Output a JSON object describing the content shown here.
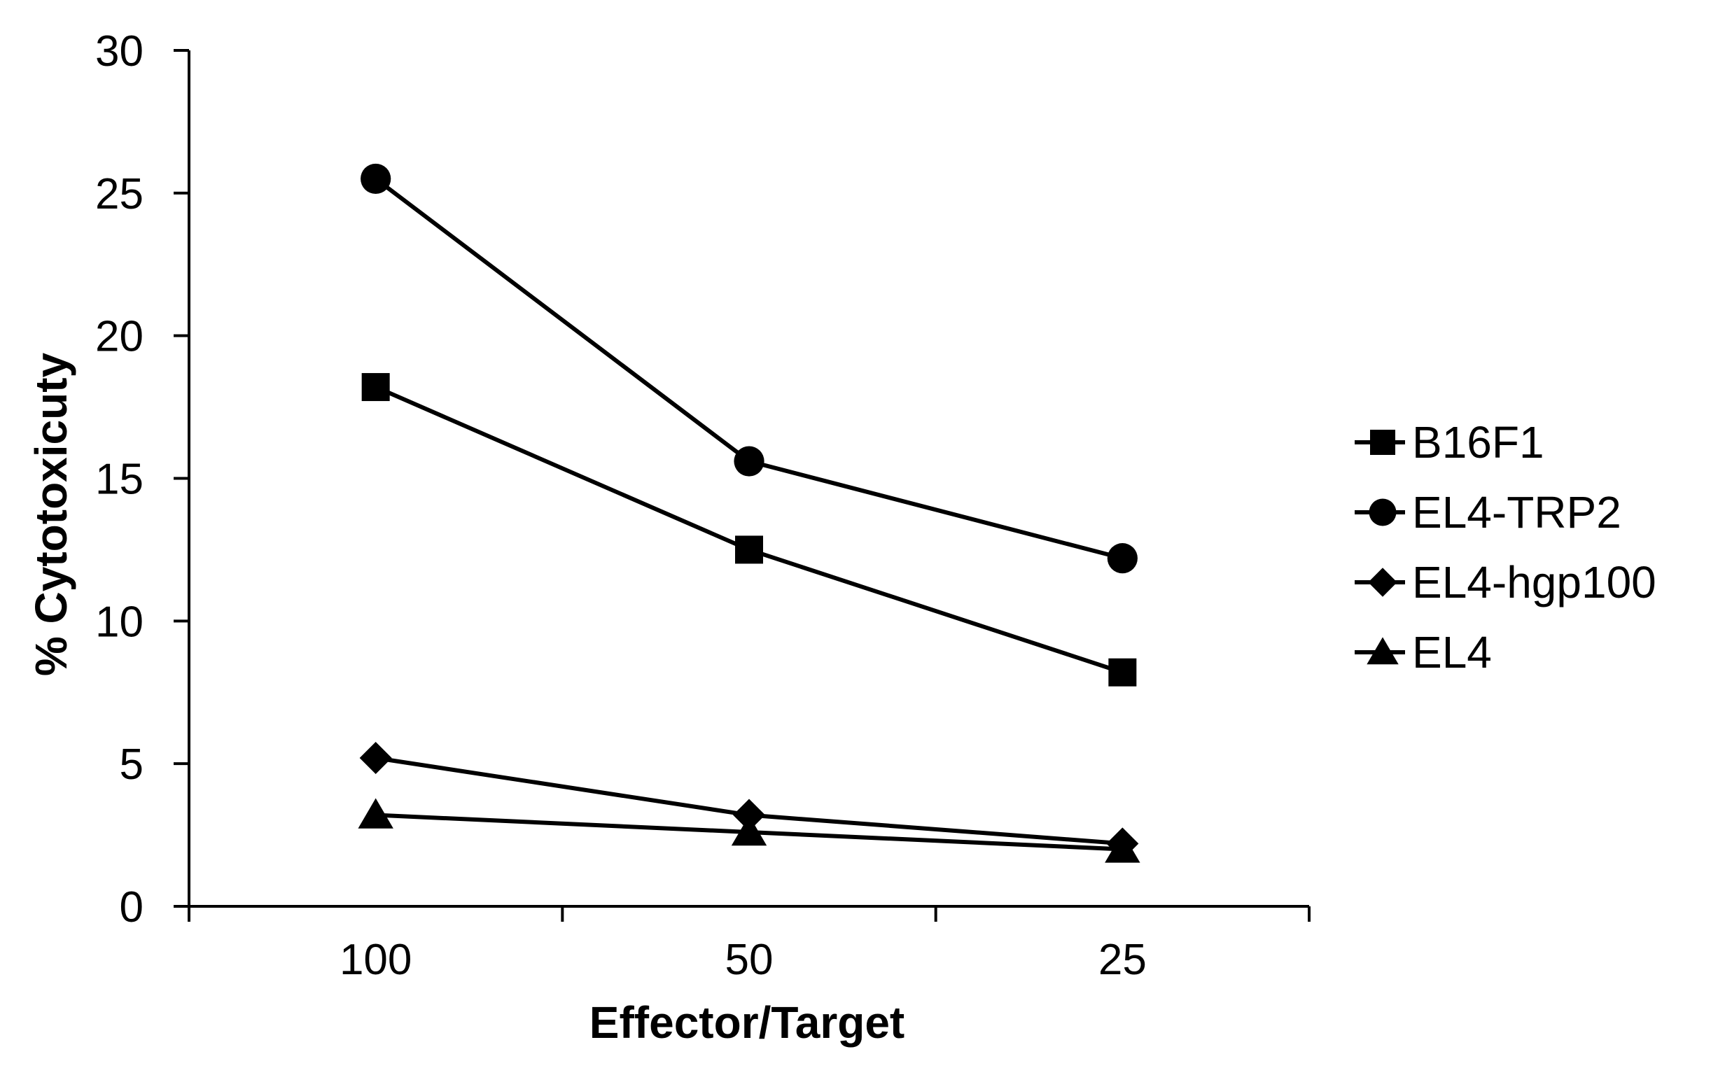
{
  "chart_data": {
    "type": "line",
    "title": "",
    "xlabel": "Effector/Target",
    "ylabel": "% Cytotoxicuty",
    "categories": [
      "100",
      "50",
      "25"
    ],
    "ylim": [
      0,
      30
    ],
    "yticks": [
      0,
      5,
      10,
      15,
      20,
      25,
      30
    ],
    "grid": false,
    "legend_position": "right",
    "series": [
      {
        "name": "B16F1",
        "marker": "square",
        "values": [
          18.2,
          12.5,
          8.2
        ]
      },
      {
        "name": "EL4-TRP2",
        "marker": "circle",
        "values": [
          25.5,
          15.6,
          12.2
        ]
      },
      {
        "name": "EL4-hgp100",
        "marker": "diamond",
        "values": [
          5.2,
          3.2,
          2.2
        ]
      },
      {
        "name": "EL4",
        "marker": "triangle",
        "values": [
          3.2,
          2.6,
          2.0
        ]
      }
    ],
    "colors": {
      "line": "#000000",
      "marker": "#000000"
    }
  }
}
